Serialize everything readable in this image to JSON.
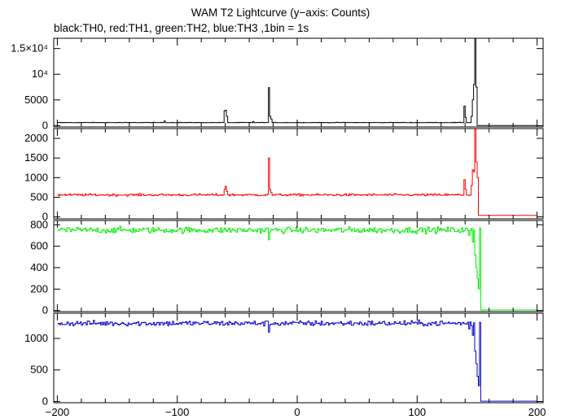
{
  "figure": {
    "title": "WAM T2 Lightcurve (y−axis: Counts)",
    "subtitle": "black:TH0, red:TH1, green:TH2, blue:TH3 ,1bin = 1s"
  },
  "chart_data": [
    {
      "type": "line",
      "name": "TH0",
      "color": "#000000",
      "xlim": [
        -203,
        205
      ],
      "ylim": [
        -250,
        17000
      ],
      "yticks": [
        {
          "value": 0,
          "label": "0"
        },
        {
          "value": 5000,
          "label": "5000"
        },
        {
          "value": 10000,
          "label": "10⁴"
        },
        {
          "value": 15000,
          "label": "1.5×10⁴"
        }
      ],
      "baseline": 600,
      "noise": 40,
      "drop_at": 149,
      "post_level": 30,
      "features": [
        {
          "x": -111,
          "y": 900
        },
        {
          "x": -61,
          "y": 2900
        },
        {
          "x": -60,
          "y": 3000
        },
        {
          "x": -59,
          "y": 1800
        },
        {
          "x": -37,
          "y": 800
        },
        {
          "x": -24,
          "y": 7400
        },
        {
          "x": -23,
          "y": 1800
        },
        {
          "x": -22,
          "y": 1300
        },
        {
          "x": 139,
          "y": 3800
        },
        {
          "x": 140,
          "y": 1600
        },
        {
          "x": 145,
          "y": 1800
        },
        {
          "x": 146,
          "y": 5000
        },
        {
          "x": 147,
          "y": 8000
        },
        {
          "x": 148,
          "y": 17000
        },
        {
          "x": 149,
          "y": 7500
        }
      ]
    },
    {
      "type": "line",
      "name": "TH1",
      "color": "#ff0000",
      "xlim": [
        -203,
        205
      ],
      "ylim": [
        -50,
        2250
      ],
      "yticks": [
        {
          "value": 0,
          "label": "0"
        },
        {
          "value": 500,
          "label": "500"
        },
        {
          "value": 1000,
          "label": "1000"
        },
        {
          "value": 1500,
          "label": "1500"
        },
        {
          "value": 2000,
          "label": "2000"
        }
      ],
      "baseline": 560,
      "noise": 28,
      "drop_at": 150,
      "post_level": 40,
      "features": [
        {
          "x": -61,
          "y": 700
        },
        {
          "x": -60,
          "y": 780
        },
        {
          "x": -59,
          "y": 650
        },
        {
          "x": -24,
          "y": 1500
        },
        {
          "x": -23,
          "y": 700
        },
        {
          "x": -22,
          "y": 620
        },
        {
          "x": 139,
          "y": 950
        },
        {
          "x": 140,
          "y": 700
        },
        {
          "x": 145,
          "y": 800
        },
        {
          "x": 146,
          "y": 1200
        },
        {
          "x": 147,
          "y": 1150
        },
        {
          "x": 148,
          "y": 2250
        },
        {
          "x": 149,
          "y": 1400
        },
        {
          "x": 150,
          "y": 1000
        }
      ]
    },
    {
      "type": "line",
      "name": "TH2",
      "color": "#00ee00",
      "xlim": [
        -203,
        205
      ],
      "ylim": [
        -10,
        840
      ],
      "yticks": [
        {
          "value": 0,
          "label": "0"
        },
        {
          "value": 200,
          "label": "200"
        },
        {
          "value": 400,
          "label": "400"
        },
        {
          "value": 600,
          "label": "600"
        },
        {
          "value": 800,
          "label": "800"
        }
      ],
      "baseline": 750,
      "noise": 28,
      "drop_at": 152,
      "post_level": 5,
      "features": [
        {
          "x": -24,
          "y": 660
        },
        {
          "x": 143,
          "y": 700
        },
        {
          "x": 146,
          "y": 640
        },
        {
          "x": 148,
          "y": 520
        },
        {
          "x": 149,
          "y": 400
        },
        {
          "x": 150,
          "y": 300
        },
        {
          "x": 151,
          "y": 200
        }
      ]
    },
    {
      "type": "line",
      "name": "TH3",
      "color": "#0000cc",
      "xlim": [
        -203,
        205
      ],
      "ylim": [
        -20,
        1400
      ],
      "yticks": [
        {
          "value": 0,
          "label": "0"
        },
        {
          "value": 500,
          "label": "500"
        },
        {
          "value": 1000,
          "label": "1000"
        }
      ],
      "baseline": 1240,
      "noise": 42,
      "drop_at": 152,
      "post_level": 5,
      "features": [
        {
          "x": -24,
          "y": 1100
        },
        {
          "x": 143,
          "y": 1150
        },
        {
          "x": 146,
          "y": 1050
        },
        {
          "x": 148,
          "y": 800
        },
        {
          "x": 149,
          "y": 600
        },
        {
          "x": 150,
          "y": 400
        },
        {
          "x": 151,
          "y": 250
        }
      ]
    }
  ],
  "x_axis": {
    "ticks": [
      {
        "value": -200,
        "label": "−200"
      },
      {
        "value": -100,
        "label": "−100"
      },
      {
        "value": 0,
        "label": "0"
      },
      {
        "value": 100,
        "label": "100"
      },
      {
        "value": 200,
        "label": "200"
      }
    ]
  }
}
